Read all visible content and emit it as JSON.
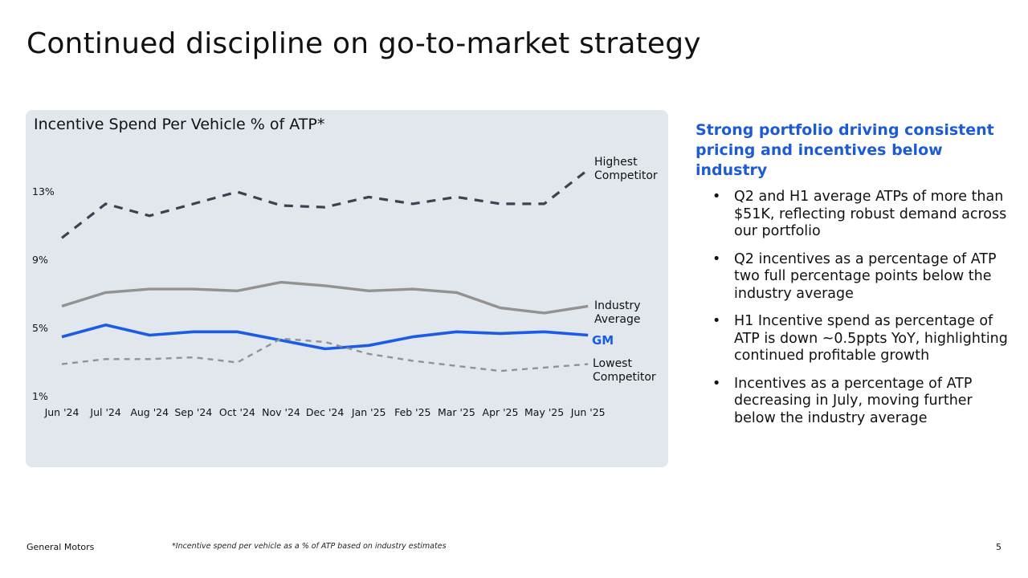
{
  "slide": {
    "title": "Continued discipline on go-to-market strategy",
    "page_number": "5",
    "company": "General Motors",
    "footnote": "*Incentive spend per vehicle as a % of ATP based on industry estimates"
  },
  "sidebar": {
    "heading": "Strong portfolio driving consistent pricing and incentives below industry",
    "bullets": [
      "Q2 and H1 average ATPs of more than $51K, reflecting robust demand across our portfolio",
      "Q2 incentives as a percentage of ATP two full percentage points below the industry average",
      "H1 Incentive spend as percentage of ATP is down ~0.5ppts YoY, highlighting continued profitable growth",
      "Incentives as a percentage of ATP decreasing in July, moving further below the industry average"
    ]
  },
  "colors": {
    "gm": "#1a5ce6",
    "industry": "#949290",
    "highest": "#3a4352",
    "lowest": "#8f9296",
    "panel": "#e2e7ee"
  },
  "chart_data": {
    "type": "line",
    "title": "Incentive Spend Per Vehicle % of ATP*",
    "xlabel": "",
    "ylabel": "",
    "categories": [
      "Jun '24",
      "Jul '24",
      "Aug '24",
      "Sep '24",
      "Oct '24",
      "Nov '24",
      "Dec '24",
      "Jan '25",
      "Feb '25",
      "Mar '25",
      "Apr '25",
      "May '25",
      "Jun '25"
    ],
    "yticks": [
      "1%",
      "5%",
      "9%",
      "13%"
    ],
    "ytick_values": [
      1,
      5,
      9,
      13
    ],
    "ylim": [
      1,
      15
    ],
    "grid": false,
    "series": [
      {
        "key": "highest",
        "name": "Highest Competitor",
        "label_lines": [
          "Highest",
          "Competitor"
        ],
        "style": "dashed-dark",
        "values": [
          10.3,
          12.3,
          11.6,
          12.3,
          13.0,
          12.2,
          12.1,
          12.7,
          12.3,
          12.7,
          12.3,
          12.3,
          14.3
        ]
      },
      {
        "key": "industry",
        "name": "Industry Average",
        "label_lines": [
          "Industry",
          "Average"
        ],
        "style": "solid-gray",
        "values": [
          6.3,
          7.1,
          7.3,
          7.3,
          7.2,
          7.7,
          7.5,
          7.2,
          7.3,
          7.1,
          6.2,
          5.9,
          6.3
        ]
      },
      {
        "key": "gm",
        "name": "GM",
        "label_lines": [
          "GM"
        ],
        "style": "solid-blue",
        "values": [
          4.5,
          5.2,
          4.6,
          4.8,
          4.8,
          4.3,
          3.8,
          4.0,
          4.5,
          4.8,
          4.7,
          4.8,
          4.6
        ]
      },
      {
        "key": "lowest",
        "name": "Lowest Competitor",
        "label_lines": [
          "Lowest",
          "Competitor"
        ],
        "style": "dashed-light",
        "values": [
          2.9,
          3.2,
          3.2,
          3.3,
          3.0,
          4.4,
          4.2,
          3.5,
          3.1,
          2.8,
          2.5,
          2.7,
          2.9
        ]
      }
    ]
  }
}
